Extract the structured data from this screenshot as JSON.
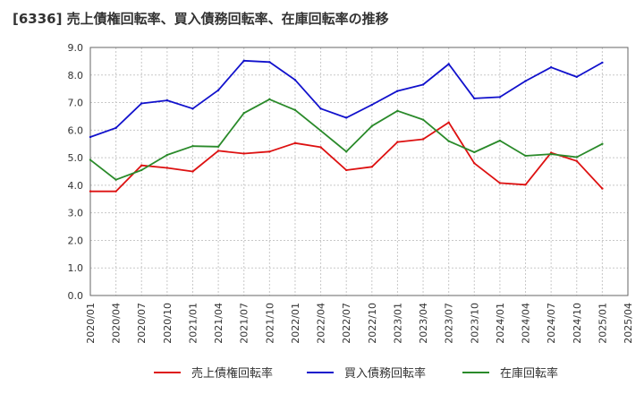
{
  "chart_data": {
    "type": "line",
    "title": "[6336]  売上債権回転率、買入債務回転率、在庫回転率の推移",
    "xlabel": "",
    "ylabel": "",
    "ylim": [
      0,
      9
    ],
    "yticks": [
      "0.0",
      "1.0",
      "2.0",
      "3.0",
      "4.0",
      "5.0",
      "6.0",
      "7.0",
      "8.0",
      "9.0"
    ],
    "categories": [
      "2020/01",
      "2020/04",
      "2020/07",
      "2020/10",
      "2021/01",
      "2021/04",
      "2021/07",
      "2021/10",
      "2022/01",
      "2022/04",
      "2022/07",
      "2022/10",
      "2023/01",
      "2023/04",
      "2023/07",
      "2023/10",
      "2024/01",
      "2024/04",
      "2024/07",
      "2024/10",
      "2025/01",
      "2025/04"
    ],
    "grid": true,
    "legend_position": "bottom",
    "series": [
      {
        "name": "売上債権回転率",
        "color": "#dd1111",
        "values": [
          3.78,
          3.78,
          4.72,
          4.63,
          4.5,
          5.25,
          5.15,
          5.22,
          5.53,
          5.38,
          4.55,
          4.67,
          5.57,
          5.67,
          6.28,
          4.8,
          4.08,
          4.02,
          5.18,
          4.88,
          3.88,
          null
        ]
      },
      {
        "name": "買入債務回転率",
        "color": "#1111cc",
        "values": [
          5.75,
          6.08,
          6.97,
          7.08,
          6.78,
          7.45,
          8.52,
          8.47,
          7.82,
          6.78,
          6.45,
          6.92,
          7.42,
          7.65,
          8.4,
          7.15,
          7.2,
          7.78,
          8.28,
          7.93,
          8.45,
          null
        ]
      },
      {
        "name": "在庫回転率",
        "color": "#2a8a2a",
        "values": [
          4.92,
          4.2,
          4.55,
          5.1,
          5.42,
          5.4,
          6.62,
          7.12,
          6.73,
          5.98,
          5.22,
          6.15,
          6.7,
          6.38,
          5.6,
          5.2,
          5.62,
          5.07,
          5.13,
          5.02,
          5.5,
          null
        ]
      }
    ]
  }
}
